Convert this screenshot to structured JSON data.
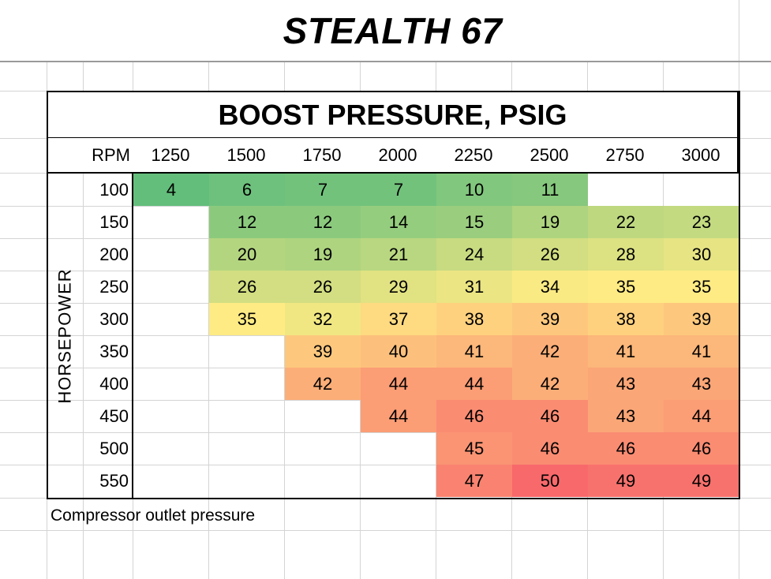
{
  "title": "STEALTH 67",
  "table_heading": "BOOST PRESSURE, PSIG",
  "rpm_label": "RPM",
  "y_axis_label": "HORSEPOWER",
  "caption": "Compressor outlet pressure",
  "color_scale": {
    "min": "#63BE7B",
    "mid": "#FFEB84",
    "max": "#F8696B",
    "min_value": 4,
    "mid_value": 35,
    "max_value": 50
  },
  "chart_data": {
    "type": "heatmap",
    "title": "STEALTH 67",
    "subtitle": "BOOST PRESSURE, PSIG",
    "xlabel": "RPM",
    "ylabel": "HORSEPOWER",
    "annotation": "Compressor outlet pressure",
    "x": [
      "1250",
      "1500",
      "1750",
      "2000",
      "2250",
      "2500",
      "2750",
      "3000"
    ],
    "y": [
      "100",
      "150",
      "200",
      "250",
      "300",
      "350",
      "400",
      "450",
      "500",
      "550"
    ],
    "values": [
      [
        4,
        6,
        7,
        7,
        10,
        11,
        null,
        null
      ],
      [
        null,
        12,
        12,
        14,
        15,
        19,
        22,
        23
      ],
      [
        null,
        20,
        19,
        21,
        24,
        26,
        28,
        30
      ],
      [
        null,
        26,
        26,
        29,
        31,
        34,
        35,
        35
      ],
      [
        null,
        35,
        32,
        37,
        38,
        39,
        38,
        39
      ],
      [
        null,
        null,
        39,
        40,
        41,
        42,
        41,
        41
      ],
      [
        null,
        null,
        42,
        44,
        44,
        42,
        43,
        43
      ],
      [
        null,
        null,
        null,
        44,
        46,
        46,
        43,
        44
      ],
      [
        null,
        null,
        null,
        null,
        45,
        46,
        46,
        46
      ],
      [
        null,
        null,
        null,
        null,
        47,
        50,
        49,
        49
      ]
    ]
  }
}
